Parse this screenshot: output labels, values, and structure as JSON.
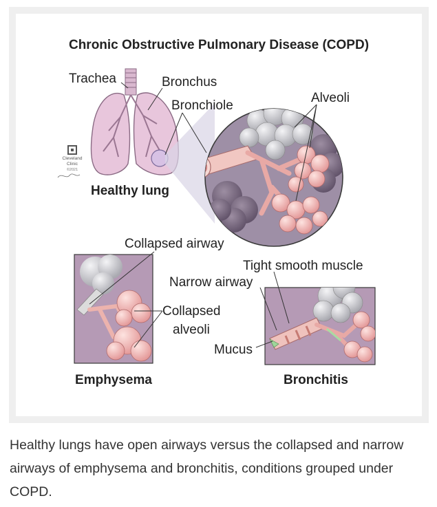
{
  "figure": {
    "title": "Chronic Obstructive Pulmonary Disease (COPD)",
    "labels": {
      "trachea": "Trachea",
      "bronchus": "Bronchus",
      "bronchiole": "Bronchiole",
      "alveoli": "Alveoli",
      "healthy_lung": "Healthy lung",
      "collapsed_airway": "Collapsed airway",
      "tight_smooth_muscle": "Tight smooth muscle",
      "narrow_airway": "Narrow airway",
      "collapsed_alveoli_line1": "Collapsed",
      "collapsed_alveoli_line2": "alveoli",
      "mucus": "Mucus",
      "emphysema": "Emphysema",
      "bronchitis": "Bronchitis"
    },
    "logo": {
      "line1": "Cleveland",
      "line2": "Clinic",
      "year": "©2021"
    },
    "colors": {
      "panel_purple": "#b59ab5",
      "lung_pink": "#e8c6dc",
      "alveoli_pink": "#f2bfbf",
      "alveoli_gray": "#c4c4c8"
    }
  },
  "caption": "Healthy lungs have open airways versus the collapsed and narrow airways of emphysema and bronchitis, conditions grouped under COPD."
}
